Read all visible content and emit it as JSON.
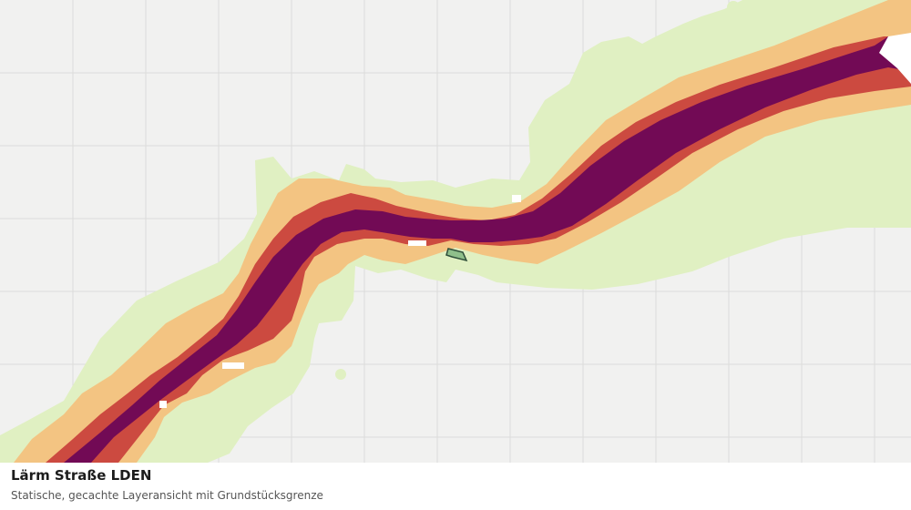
{
  "caption": {
    "title": "Lärm Straße LDEN",
    "subtitle": "Statische, gecachte Layeransicht mit Grundstücksgrenze"
  },
  "colors": {
    "background": "#f1f1f0",
    "grid": "#dcdcdb",
    "noise_low": "#e0f0c2",
    "noise_medium": "#f3c482",
    "noise_high": "#cc4a40",
    "noise_very_high": "#720a55",
    "parcel_fill": "#8fbf8b",
    "parcel_outline": "#2f4f3a"
  },
  "layers": [
    "noise-low-zone",
    "noise-medium-zone",
    "noise-high-zone",
    "noise-very-high-zone",
    "parcel-boundary"
  ]
}
